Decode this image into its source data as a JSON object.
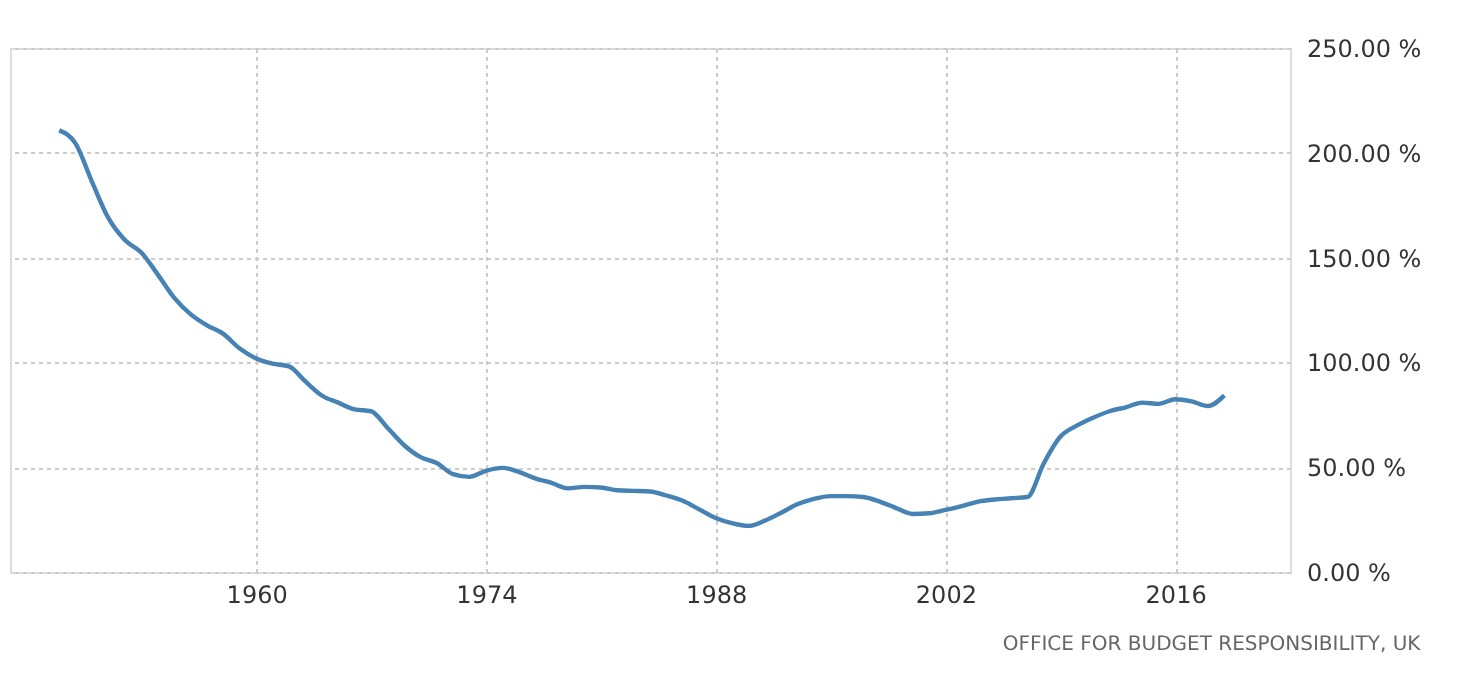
{
  "chart_data": {
    "type": "line",
    "x": [
      1948,
      1949,
      1950,
      1951,
      1952,
      1953,
      1954,
      1955,
      1956,
      1957,
      1958,
      1959,
      1960,
      1961,
      1962,
      1963,
      1964,
      1965,
      1966,
      1967,
      1968,
      1969,
      1970,
      1971,
      1972,
      1973,
      1974,
      1975,
      1976,
      1977,
      1978,
      1979,
      1980,
      1981,
      1982,
      1983,
      1984,
      1985,
      1986,
      1987,
      1988,
      1989,
      1990,
      1991,
      1992,
      1993,
      1994,
      1995,
      1996,
      1997,
      1998,
      1999,
      2000,
      2001,
      2002,
      2003,
      2004,
      2005,
      2006,
      2007,
      2008,
      2009,
      2010,
      2011,
      2012,
      2013,
      2014,
      2015,
      2016,
      2017,
      2018,
      2019
    ],
    "series": [
      {
        "color": "#4682b4",
        "values": [
          210.7,
          204.4,
          186.1,
          168.8,
          158.4,
          152.4,
          142,
          130.9,
          123,
          117.7,
          113.6,
          106.6,
          101.9,
          99.4,
          98.1,
          90.9,
          84.2,
          80.8,
          77.6,
          76.7,
          68.8,
          60.6,
          54.9,
          52,
          46.7,
          45.4,
          48.3,
          49.7,
          47.8,
          44.7,
          42.5,
          39.9,
          40.6,
          40.3,
          39,
          38.7,
          38.4,
          36.5,
          34,
          29.9,
          25.8,
          23.3,
          22,
          24.5,
          28.3,
          32.4,
          34.9,
          36.2,
          36.2,
          35.8,
          33.6,
          30.5,
          27.7,
          28,
          29.6,
          31.4,
          33.6,
          34.6,
          35.2,
          35.8,
          51.9,
          64.5,
          69.8,
          73.6,
          76.7,
          78.6,
          80.8,
          80.2,
          82.4,
          81.4,
          79.2,
          84.3
        ]
      }
    ],
    "xlim": [
      1945,
      2023
    ],
    "xticks": [
      1960,
      1974,
      1988,
      2002,
      2016
    ],
    "ylim": [
      0,
      250
    ],
    "yticks": [
      {
        "value": 0,
        "label": "0.00 %"
      },
      {
        "value": 50,
        "label": "50.00 %"
      },
      {
        "value": 100,
        "label": "100.00 %"
      },
      {
        "value": 150,
        "label": "150.00 %"
      },
      {
        "value": 200,
        "label": "200.00 %"
      },
      {
        "value": 250,
        "label": "250.00 %"
      }
    ],
    "grid": true,
    "annotations": [
      "OFFICE FOR BUDGET RESPONSIBILITY, UK"
    ]
  }
}
